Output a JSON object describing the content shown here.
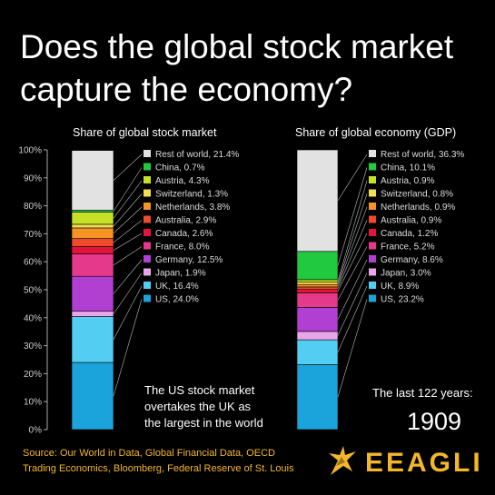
{
  "title_lines": [
    "Does the global stock market",
    "capture the economy?"
  ],
  "chart_data": {
    "type": "stacked-bar",
    "y_ticks": [
      "0%",
      "10%",
      "20%",
      "30%",
      "40%",
      "50%",
      "60%",
      "70%",
      "80%",
      "90%",
      "100%"
    ],
    "ylim": [
      0,
      100
    ],
    "categories": [
      "US",
      "UK",
      "Japan",
      "Germany",
      "France",
      "Canada",
      "Australia",
      "Netherlands",
      "Switzerland",
      "Austria",
      "China",
      "Rest of world"
    ],
    "colors": [
      "#1ba3dc",
      "#53cdf2",
      "#e8a6e8",
      "#b140d2",
      "#e5398c",
      "#e2143c",
      "#f04a2c",
      "#f59425",
      "#f3dd52",
      "#c6e027",
      "#20c940",
      "#e2e2e2"
    ],
    "charts": [
      {
        "title": "Share of global stock market",
        "values": [
          24.0,
          16.4,
          1.9,
          12.5,
          8.0,
          2.6,
          2.9,
          3.8,
          1.3,
          4.3,
          0.7,
          21.4
        ],
        "labels": [
          "US, 24.0%",
          "UK, 16.4%",
          "Japan, 1.9%",
          "Germany, 12.5%",
          "France, 8.0%",
          "Canada, 2.6%",
          "Australia, 2.9%",
          "Netherlands, 3.8%",
          "Switzerland, 1.3%",
          "Austria, 4.3%",
          "China, 0.7%",
          "Rest of world, 21.4%"
        ]
      },
      {
        "title": "Share of global economy (GDP)",
        "values": [
          23.2,
          8.9,
          3.0,
          8.6,
          5.2,
          1.2,
          0.9,
          0.9,
          0.8,
          0.9,
          10.1,
          36.3
        ],
        "labels": [
          "US, 23.2%",
          "UK, 8.9%",
          "Japan, 3.0%",
          "Germany, 8.6%",
          "France, 5.2%",
          "Canada, 1.2%",
          "Australia, 0.9%",
          "Netherlands, 0.9%",
          "Switzerland, 0.8%",
          "Austria, 0.9%",
          "China, 10.1%",
          "Rest of world, 36.3%"
        ]
      }
    ],
    "annotations": [
      "The US stock market",
      "overtakes the UK as",
      "the largest in the world"
    ],
    "period_label": "The last 122 years:",
    "year": "1909"
  },
  "source_lines": [
    "Source: Our World in Data, Global Financial Data, OECD",
    "Trading Economics, Bloomberg, Federal Reserve of St. Louis"
  ],
  "brand": "EEAGLI",
  "brand_color": "#f4b62b",
  "icons": {
    "logo": "eagle-logo-icon"
  }
}
